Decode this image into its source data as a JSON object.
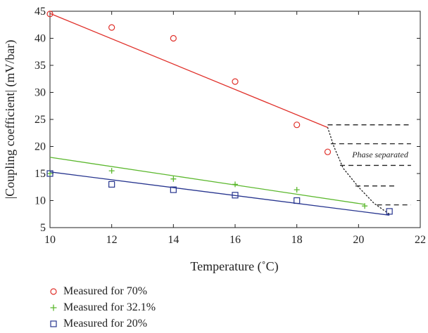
{
  "chart_data": {
    "type": "scatter",
    "title": "",
    "xlabel": "Temperature (˚C)",
    "ylabel": "|Coupling coefficient| (mV/bar)",
    "xlim": [
      10,
      22
    ],
    "ylim": [
      5,
      45
    ],
    "xticks": [
      "10",
      "12",
      "14",
      "16",
      "18",
      "20",
      "22"
    ],
    "yticks": [
      "5",
      "10",
      "15",
      "20",
      "25",
      "30",
      "35",
      "40",
      "45"
    ],
    "grid": false,
    "legend_position": "below",
    "series": [
      {
        "name": "Measured for 70%",
        "marker": "circle",
        "color": "#e0302a",
        "points": [
          [
            10,
            44.5
          ],
          [
            12,
            42
          ],
          [
            14,
            40
          ],
          [
            16,
            32
          ],
          [
            18,
            24
          ],
          [
            19,
            19
          ]
        ],
        "fit_line": [
          [
            10,
            44.6
          ],
          [
            19,
            23.5
          ]
        ]
      },
      {
        "name": "Measured for 32.1%",
        "marker": "plus",
        "color": "#5cb82e",
        "points": [
          [
            10,
            15
          ],
          [
            12,
            15.5
          ],
          [
            14,
            14
          ],
          [
            16,
            13
          ],
          [
            18,
            12
          ],
          [
            20.2,
            9
          ]
        ],
        "fit_line": [
          [
            10,
            18
          ],
          [
            20.2,
            9.3
          ]
        ]
      },
      {
        "name": "Measured for 20%",
        "marker": "square",
        "color": "#27358f",
        "points": [
          [
            10,
            15
          ],
          [
            12,
            13
          ],
          [
            14,
            12
          ],
          [
            16,
            11
          ],
          [
            18,
            10
          ],
          [
            21,
            8
          ]
        ],
        "fit_line": [
          [
            10,
            15.3
          ],
          [
            21,
            7.3
          ]
        ]
      }
    ],
    "phase_boundary": [
      [
        19,
        23.5
      ],
      [
        19.2,
        20
      ],
      [
        19.5,
        16
      ],
      [
        20,
        12.5
      ],
      [
        20.5,
        9.5
      ],
      [
        21,
        7.5
      ]
    ],
    "phase_dashes": [
      [
        [
          19,
          24
        ],
        [
          21.7,
          24
        ]
      ],
      [
        [
          19.1,
          20.5
        ],
        [
          21.7,
          20.5
        ]
      ],
      [
        [
          19.4,
          16.5
        ],
        [
          21.7,
          16.5
        ]
      ],
      [
        [
          19.9,
          12.7
        ],
        [
          21.2,
          12.7
        ]
      ],
      [
        [
          20.6,
          9.2
        ],
        [
          21.7,
          9.2
        ]
      ]
    ],
    "annotation": {
      "text": "Phase separated",
      "x": 20.7,
      "y": 18.5
    }
  }
}
